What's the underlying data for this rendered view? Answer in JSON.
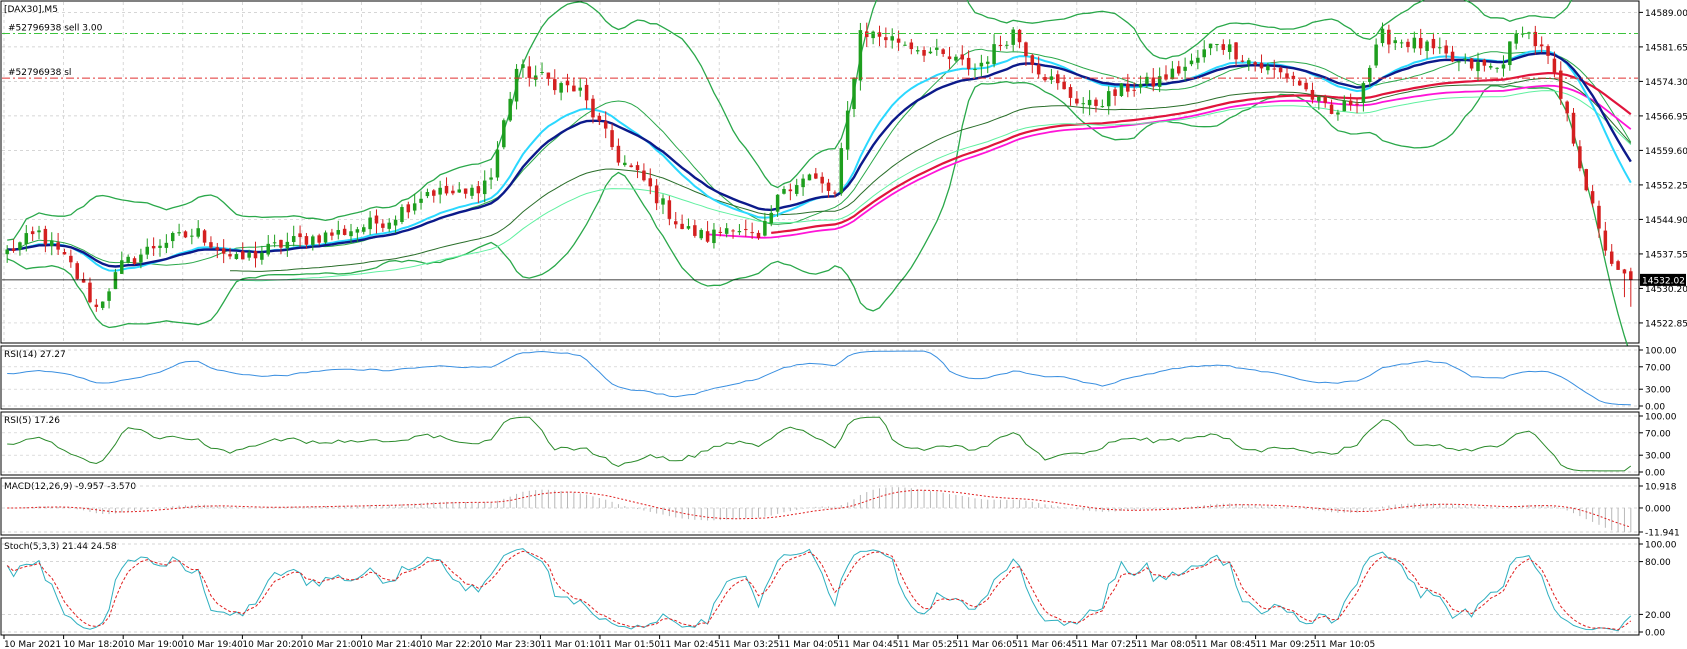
{
  "chart_data": {
    "type": "candlestick",
    "symbol_label": "[DAX30],M5",
    "current_price": "14532.02",
    "price_axis_ticks": [
      "14589.00",
      "14581.65",
      "14574.30",
      "14566.95",
      "14559.60",
      "14552.25",
      "14544.90",
      "14537.55",
      "14530.20",
      "14522.85"
    ],
    "ylim": [
      14519,
      14591
    ],
    "price_lines": [
      {
        "label": "#52796938 sell 3.00",
        "value": 14584.5,
        "color": "#3cc43c"
      },
      {
        "label": "#52796938 sl",
        "value": 14575.0,
        "color": "#e03030"
      }
    ],
    "time_ticks": [
      "10 Mar 2021",
      "10 Mar 18:20",
      "10 Mar 19:00",
      "10 Mar 19:40",
      "10 Mar 20:20",
      "10 Mar 21:00",
      "10 Mar 21:40",
      "10 Mar 22:20",
      "10 Mar 23:30",
      "11 Mar 01:10",
      "11 Mar 01:50",
      "11 Mar 02:45",
      "11 Mar 03:25",
      "11 Mar 04:05",
      "11 Mar 04:45",
      "11 Mar 05:25",
      "11 Mar 06:05",
      "11 Mar 06:45",
      "11 Mar 07:25",
      "11 Mar 08:05",
      "11 Mar 08:45",
      "11 Mar 09:25",
      "11 Mar 10:05"
    ],
    "close_anchors": [
      [
        0,
        14538
      ],
      [
        5,
        14542
      ],
      [
        10,
        14535
      ],
      [
        14,
        14526
      ],
      [
        18,
        14535
      ],
      [
        24,
        14540
      ],
      [
        30,
        14542
      ],
      [
        36,
        14536
      ],
      [
        44,
        14540
      ],
      [
        52,
        14542
      ],
      [
        60,
        14545
      ],
      [
        66,
        14551
      ],
      [
        72,
        14550
      ],
      [
        76,
        14554
      ],
      [
        80,
        14577
      ],
      [
        86,
        14574
      ],
      [
        90,
        14572
      ],
      [
        96,
        14558
      ],
      [
        100,
        14553
      ],
      [
        106,
        14543
      ],
      [
        110,
        14541
      ],
      [
        114,
        14544
      ],
      [
        118,
        14540
      ],
      [
        122,
        14552
      ],
      [
        126,
        14554
      ],
      [
        130,
        14550
      ],
      [
        134,
        14585
      ],
      [
        140,
        14583
      ],
      [
        146,
        14580
      ],
      [
        152,
        14577
      ],
      [
        158,
        14585
      ],
      [
        162,
        14577
      ],
      [
        166,
        14572
      ],
      [
        170,
        14569
      ],
      [
        176,
        14573
      ],
      [
        180,
        14574
      ],
      [
        186,
        14578
      ],
      [
        190,
        14583
      ],
      [
        196,
        14578
      ],
      [
        202,
        14575
      ],
      [
        208,
        14567
      ],
      [
        212,
        14571
      ],
      [
        216,
        14584
      ],
      [
        222,
        14582
      ],
      [
        228,
        14578
      ],
      [
        234,
        14577
      ],
      [
        238,
        14586
      ],
      [
        242,
        14579
      ],
      [
        246,
        14562
      ],
      [
        250,
        14542
      ],
      [
        253,
        14533
      ],
      [
        255,
        14532.02
      ]
    ],
    "indicators": [
      {
        "label": "RSI(14) 27.27",
        "ticks": [
          "100.00",
          "70.00",
          "30.00",
          "0.00"
        ]
      },
      {
        "label": "RSI(5) 17.26",
        "ticks": [
          "100.00",
          "70.00",
          "30.00",
          "0.00"
        ]
      },
      {
        "label": "MACD(12,26,9) -9.957 -3.570",
        "ticks": [
          "10.918",
          "0.000",
          "-11.941"
        ]
      },
      {
        "label": "Stoch(5,3,3) 21.44 24.58",
        "ticks": [
          "100.00",
          "80.00",
          "20.00",
          "0.00"
        ]
      }
    ],
    "colors": {
      "bull": "#1e9e1e",
      "bear": "#d42020",
      "bands": "#2aa84a",
      "ma_fast": "#0c1a8a",
      "ma_cyan": "#2ad8ff",
      "ma_200": "#e0143c",
      "ma_magenta": "#ff14d8",
      "ma_green_dark": "#2a6e2a",
      "ma_green_light": "#60f0a0",
      "rsi14": "#3a8fe0",
      "rsi5": "#2a8a2a",
      "macd": "#b8b8b8",
      "macd_signal": "#e02020",
      "stoch_main": "#30b0c0",
      "stoch_signal": "#e02020",
      "current_price_line": "#000000"
    }
  }
}
